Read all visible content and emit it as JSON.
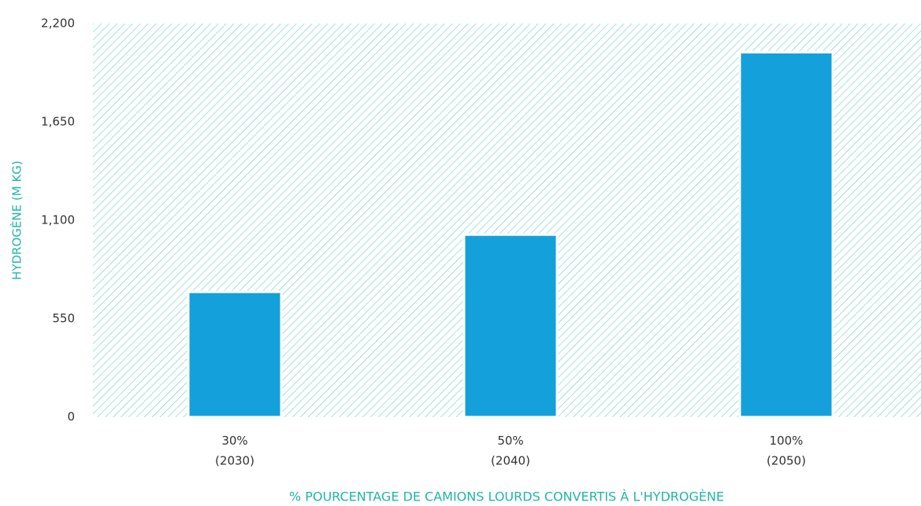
{
  "chart_data": {
    "type": "bar",
    "x_label": "% POURCENTAGE DE CAMIONS LOURDS CONVERTIS À L'HYDROGÈNE",
    "y_label": "HYDROGÈNE (M KG)",
    "categories": [
      "30%\n(2030)",
      "50%\n(2040)",
      "100%\n(2050)"
    ],
    "values": [
      700,
      1020,
      2040
    ],
    "color": "#14a0db",
    "ylim": [
      0,
      2200
    ],
    "yticks": [
      0,
      550,
      {
        "value": 1100,
        "label": "1,100"
      },
      {
        "value": 1650,
        "label": "1,650"
      },
      {
        "value": 2200,
        "label": "2,200"
      }
    ],
    "grid": false
  }
}
